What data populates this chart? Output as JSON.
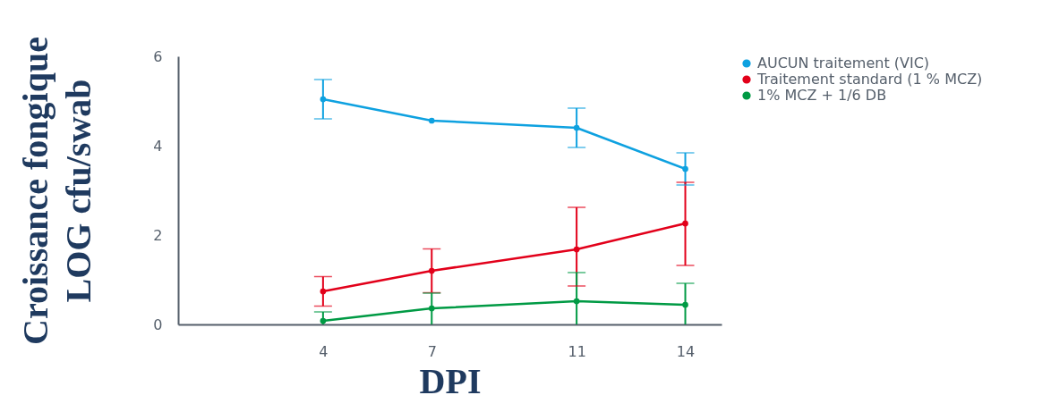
{
  "chart_data": {
    "type": "line",
    "xlabel": "DPI",
    "ylabel": "Croissance fongique\nLOG cfu/swab",
    "x": [
      4,
      7,
      11,
      14
    ],
    "xlim": [
      0,
      15
    ],
    "xticks": [
      4,
      7,
      11,
      14
    ],
    "ylim": [
      0,
      6
    ],
    "yticks": [
      0,
      2,
      4,
      6
    ],
    "grid": false,
    "legend": "top right",
    "marker": "circle",
    "line_style": "solid",
    "series": [
      {
        "name": "AUCUN traitement (VIC)",
        "color": "#0ea1e0",
        "values": [
          5.04,
          4.56,
          4.4,
          3.48
        ],
        "errors": [
          0.44,
          null,
          0.44,
          0.36
        ]
      },
      {
        "name": "Traitement standard (1 % MCZ)",
        "color": "#e2001a",
        "values": [
          0.74,
          1.2,
          1.68,
          2.26
        ],
        "errors": [
          0.33,
          0.49,
          [
            0.86,
            2.62
          ],
          [
            1.32,
            3.18
          ]
        ]
      },
      {
        "name": "1% MCZ + 1/6 DB",
        "color": "#009a44",
        "values": [
          0.08,
          0.36,
          0.52,
          0.44
        ],
        "errors": [
          0.2,
          [
            0,
            0.7
          ],
          [
            0,
            1.16
          ],
          [
            0,
            0.92
          ]
        ]
      }
    ]
  }
}
